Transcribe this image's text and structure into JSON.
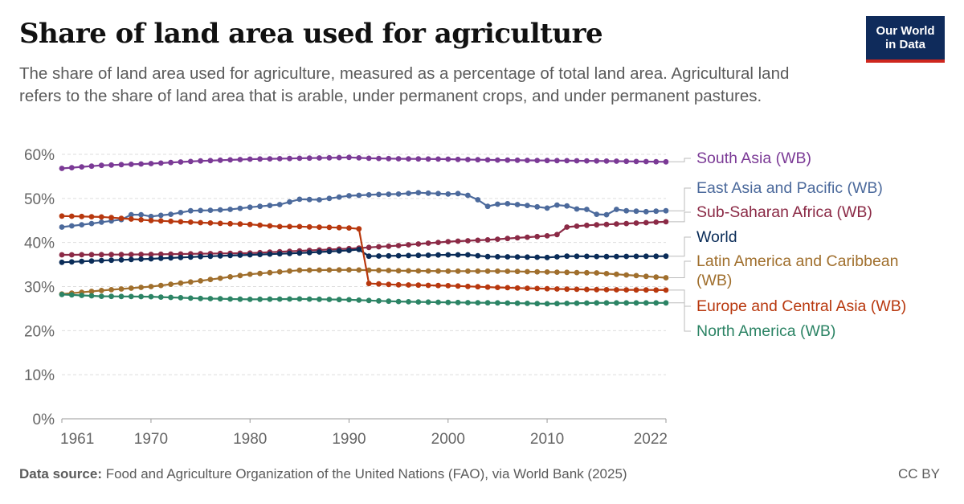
{
  "header": {
    "title": "Share of land area used for agriculture",
    "subtitle": "The share of land area used for agriculture, measured as a percentage of total land area. Agricultural land refers to the share of land area that is arable, under permanent crops, and under permanent pastures."
  },
  "logo": {
    "line1": "Our World",
    "line2": "in Data",
    "bg_color": "#0f2b5b",
    "accent_color": "#ce261e"
  },
  "footer": {
    "source_label": "Data source:",
    "source_text": "Food and Agriculture Organization of the United Nations (FAO), via World Bank (2025)",
    "license": "CC BY"
  },
  "chart_data": {
    "type": "line",
    "x_ticks": [
      1961,
      1970,
      1980,
      1990,
      2000,
      2010,
      2022
    ],
    "y_ticks": [
      "0%",
      "10%",
      "20%",
      "30%",
      "40%",
      "50%",
      "60%"
    ],
    "xlim": [
      1961,
      2022
    ],
    "ylim": [
      0,
      60
    ],
    "grid": "horizontal dashed",
    "legend": "right-of-plot line labels",
    "series": [
      {
        "name": "South Asia (WB)",
        "color": "#7b3a96",
        "points": [
          [
            1961,
            56.8
          ],
          [
            1965,
            57.5
          ],
          [
            1970,
            57.9
          ],
          [
            1975,
            58.5
          ],
          [
            1980,
            58.9
          ],
          [
            1985,
            59.1
          ],
          [
            1990,
            59.3
          ],
          [
            1992,
            59.1
          ],
          [
            1995,
            59.0
          ],
          [
            2000,
            58.9
          ],
          [
            2005,
            58.7
          ],
          [
            2010,
            58.6
          ],
          [
            2015,
            58.5
          ],
          [
            2022,
            58.3
          ]
        ]
      },
      {
        "name": "East Asia and Pacific (WB)",
        "color": "#4c6a9c",
        "points": [
          [
            1961,
            43.5
          ],
          [
            1964,
            44.3
          ],
          [
            1967,
            45.2
          ],
          [
            1968,
            46.3
          ],
          [
            1969,
            46.3
          ],
          [
            1970,
            45.9
          ],
          [
            1972,
            46.4
          ],
          [
            1974,
            47.2
          ],
          [
            1976,
            47.3
          ],
          [
            1978,
            47.5
          ],
          [
            1980,
            48.0
          ],
          [
            1983,
            48.6
          ],
          [
            1985,
            49.8
          ],
          [
            1987,
            49.7
          ],
          [
            1990,
            50.6
          ],
          [
            1993,
            50.9
          ],
          [
            1995,
            51.0
          ],
          [
            1997,
            51.3
          ],
          [
            2000,
            51.0
          ],
          [
            2001,
            51.1
          ],
          [
            2002,
            50.7
          ],
          [
            2003,
            49.7
          ],
          [
            2004,
            48.2
          ],
          [
            2005,
            48.7
          ],
          [
            2006,
            48.8
          ],
          [
            2008,
            48.4
          ],
          [
            2010,
            47.8
          ],
          [
            2011,
            48.5
          ],
          [
            2012,
            48.3
          ],
          [
            2013,
            47.6
          ],
          [
            2014,
            47.5
          ],
          [
            2015,
            46.4
          ],
          [
            2016,
            46.3
          ],
          [
            2017,
            47.5
          ],
          [
            2018,
            47.2
          ],
          [
            2020,
            47.0
          ],
          [
            2022,
            47.2
          ]
        ]
      },
      {
        "name": "Sub-Saharan Africa (WB)",
        "color": "#8b2a46",
        "points": [
          [
            1961,
            37.2
          ],
          [
            1970,
            37.3
          ],
          [
            1980,
            37.6
          ],
          [
            1985,
            38.1
          ],
          [
            1990,
            38.6
          ],
          [
            1995,
            39.3
          ],
          [
            2000,
            40.2
          ],
          [
            2004,
            40.6
          ],
          [
            2006,
            40.9
          ],
          [
            2008,
            41.2
          ],
          [
            2010,
            41.5
          ],
          [
            2011,
            41.8
          ],
          [
            2012,
            43.5
          ],
          [
            2014,
            43.9
          ],
          [
            2016,
            44.1
          ],
          [
            2018,
            44.3
          ],
          [
            2020,
            44.5
          ],
          [
            2022,
            44.7
          ]
        ]
      },
      {
        "name": "World",
        "color": "#0a2c58",
        "points": [
          [
            1961,
            35.5
          ],
          [
            1965,
            35.9
          ],
          [
            1970,
            36.3
          ],
          [
            1975,
            36.8
          ],
          [
            1980,
            37.2
          ],
          [
            1985,
            37.6
          ],
          [
            1990,
            38.2
          ],
          [
            1991,
            38.4
          ],
          [
            1992,
            36.9
          ],
          [
            1995,
            37.0
          ],
          [
            2000,
            37.2
          ],
          [
            2002,
            37.2
          ],
          [
            2004,
            36.8
          ],
          [
            2008,
            36.7
          ],
          [
            2010,
            36.6
          ],
          [
            2012,
            36.9
          ],
          [
            2016,
            36.8
          ],
          [
            2022,
            36.9
          ]
        ]
      },
      {
        "name": "Latin America and Caribbean (WB)",
        "color": "#a06f2d",
        "points": [
          [
            1961,
            28.3
          ],
          [
            1965,
            29.1
          ],
          [
            1970,
            30.0
          ],
          [
            1975,
            31.3
          ],
          [
            1980,
            32.8
          ],
          [
            1985,
            33.7
          ],
          [
            1990,
            33.8
          ],
          [
            1995,
            33.6
          ],
          [
            2000,
            33.5
          ],
          [
            2005,
            33.5
          ],
          [
            2010,
            33.3
          ],
          [
            2015,
            33.1
          ],
          [
            2022,
            32.0
          ]
        ]
      },
      {
        "name": "Europe and Central Asia (WB)",
        "color": "#b8380e",
        "points": [
          [
            1961,
            46.0
          ],
          [
            1965,
            45.8
          ],
          [
            1970,
            45.0
          ],
          [
            1975,
            44.5
          ],
          [
            1980,
            44.1
          ],
          [
            1983,
            43.6
          ],
          [
            1985,
            43.6
          ],
          [
            1990,
            43.3
          ],
          [
            1991,
            43.1
          ],
          [
            1992,
            30.7
          ],
          [
            1995,
            30.4
          ],
          [
            2000,
            30.2
          ],
          [
            2005,
            29.8
          ],
          [
            2010,
            29.5
          ],
          [
            2015,
            29.3
          ],
          [
            2022,
            29.2
          ]
        ]
      },
      {
        "name": "North America (WB)",
        "color": "#2c8465",
        "points": [
          [
            1961,
            28.2
          ],
          [
            1965,
            27.8
          ],
          [
            1970,
            27.7
          ],
          [
            1975,
            27.3
          ],
          [
            1980,
            27.1
          ],
          [
            1985,
            27.2
          ],
          [
            1990,
            27.0
          ],
          [
            1995,
            26.6
          ],
          [
            2000,
            26.4
          ],
          [
            2005,
            26.3
          ],
          [
            2010,
            26.1
          ],
          [
            2015,
            26.3
          ],
          [
            2022,
            26.3
          ]
        ]
      }
    ],
    "labels": [
      {
        "series": 0,
        "lines": [
          "South Asia (WB)"
        ]
      },
      {
        "series": 1,
        "lines": [
          "East Asia and Pacific (WB)"
        ]
      },
      {
        "series": 2,
        "lines": [
          "Sub-Saharan Africa (WB)"
        ]
      },
      {
        "series": 3,
        "lines": [
          "World"
        ]
      },
      {
        "series": 4,
        "lines": [
          "Latin America and Caribbean",
          "(WB)"
        ]
      },
      {
        "series": 5,
        "lines": [
          "Europe and Central Asia (WB)"
        ]
      },
      {
        "series": 6,
        "lines": [
          "North America (WB)"
        ]
      }
    ]
  }
}
